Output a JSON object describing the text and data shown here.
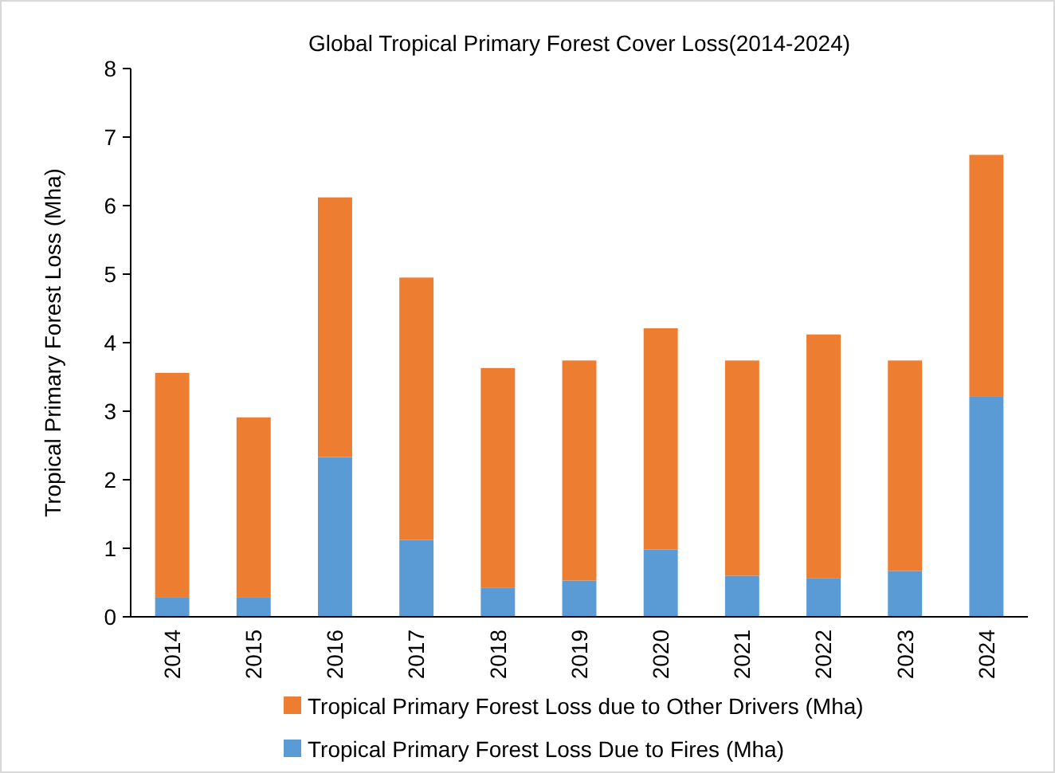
{
  "chart_data": {
    "type": "bar",
    "title": "Global Tropical Primary Forest Cover Loss(2014-2024)",
    "ylabel": "Tropical Primary Forest Loss (Mha)",
    "categories": [
      "2014",
      "2015",
      "2016",
      "2017",
      "2018",
      "2019",
      "2020",
      "2021",
      "2022",
      "2023",
      "2024"
    ],
    "stacked": true,
    "legend": "bottom",
    "ylim": [
      0,
      8
    ],
    "yticks": [
      0,
      1,
      2,
      3,
      4,
      5,
      6,
      7,
      8
    ],
    "grid": false,
    "series": [
      {
        "name": "Tropical Primary Forest Loss Due to Fires (Mha)",
        "color": "#5b9bd5",
        "values": [
          0.28,
          0.28,
          2.33,
          1.12,
          0.42,
          0.53,
          0.98,
          0.6,
          0.56,
          0.67,
          3.21
        ]
      },
      {
        "name": "Tropical Primary Forest Loss due to Other Drivers (Mha)",
        "color": "#ed7d31",
        "values": [
          3.28,
          2.63,
          3.79,
          3.83,
          3.21,
          3.21,
          3.23,
          3.14,
          3.56,
          3.07,
          3.53
        ]
      }
    ]
  }
}
